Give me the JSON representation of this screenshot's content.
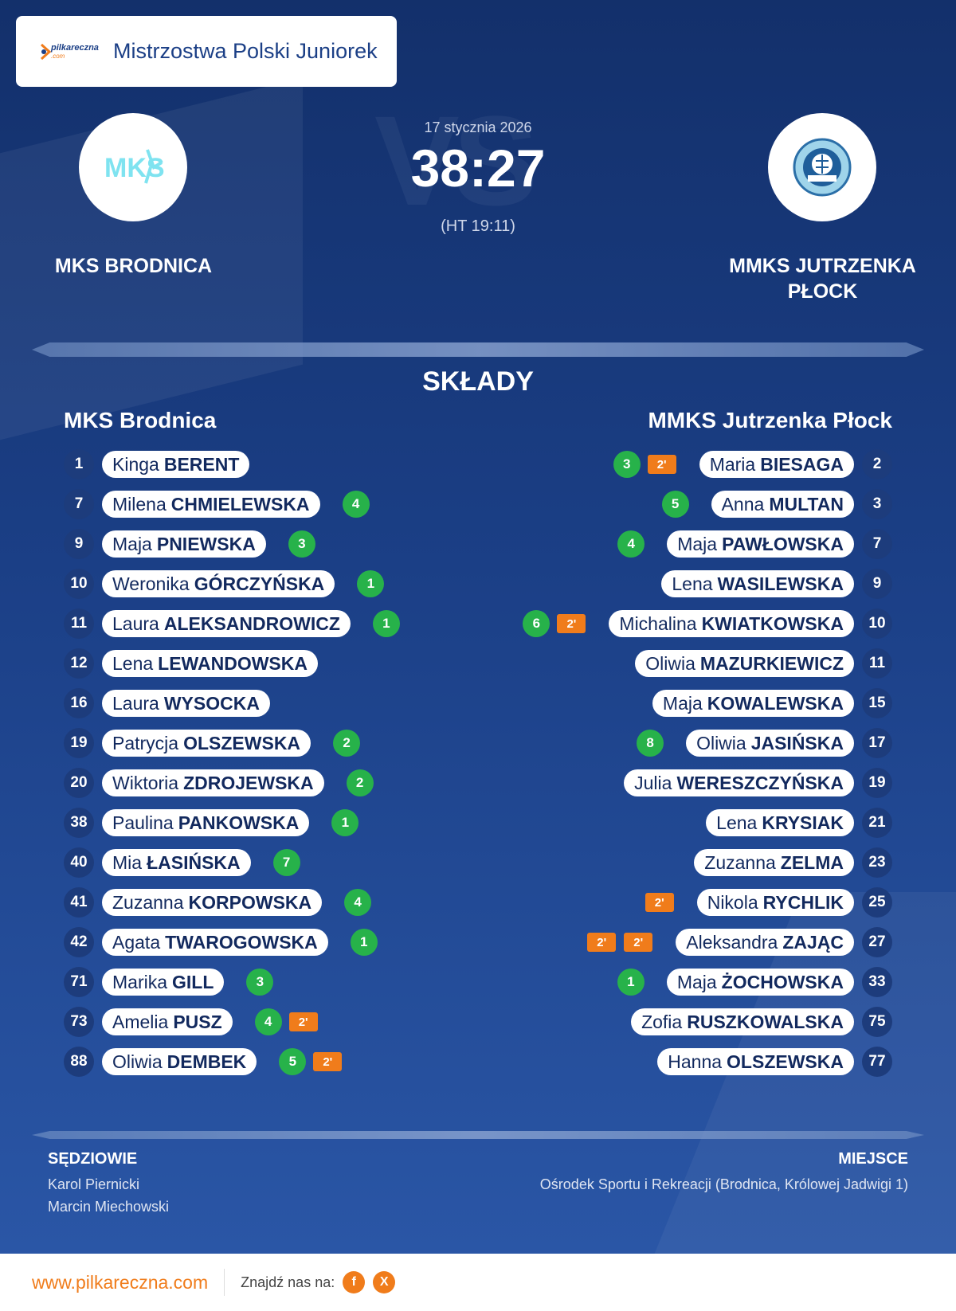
{
  "colors": {
    "accent": "#f07c1b",
    "goal_badge": "#27b24a",
    "navy": "#13306b"
  },
  "header": {
    "brand_logo_text": "pilkareczna",
    "brand_logo_suffix": ".com",
    "competition": "Mistrzostwa Polski Juniorek"
  },
  "match": {
    "date": "17 stycznia 2026",
    "score": "38:27",
    "halftime": "(HT 19:11)",
    "home_team": "MKS BRODNICA",
    "away_team": "MMKS JUTRZENKA PŁOCK"
  },
  "lineups": {
    "title": "SKŁADY",
    "home_name": "MKS Brodnica",
    "away_name": "MMKS Jutrzenka Płock",
    "home": [
      {
        "number": "1",
        "first": "Kinga",
        "last": "BERENT",
        "goals": "",
        "suspensions": []
      },
      {
        "number": "7",
        "first": "Milena",
        "last": "CHMIELEWSKA",
        "goals": "4",
        "suspensions": []
      },
      {
        "number": "9",
        "first": "Maja",
        "last": "PNIEWSKA",
        "goals": "3",
        "suspensions": []
      },
      {
        "number": "10",
        "first": "Weronika",
        "last": "GÓRCZYŃSKA",
        "goals": "1",
        "suspensions": []
      },
      {
        "number": "11",
        "first": "Laura",
        "last": "ALEKSANDROWICZ",
        "goals": "1",
        "suspensions": []
      },
      {
        "number": "12",
        "first": "Lena",
        "last": "LEWANDOWSKA",
        "goals": "",
        "suspensions": []
      },
      {
        "number": "16",
        "first": "Laura",
        "last": "WYSOCKA",
        "goals": "",
        "suspensions": []
      },
      {
        "number": "19",
        "first": "Patrycja",
        "last": "OLSZEWSKA",
        "goals": "2",
        "suspensions": []
      },
      {
        "number": "20",
        "first": "Wiktoria",
        "last": "ZDROJEWSKA",
        "goals": "2",
        "suspensions": []
      },
      {
        "number": "38",
        "first": "Paulina",
        "last": "PANKOWSKA",
        "goals": "1",
        "suspensions": []
      },
      {
        "number": "40",
        "first": "Mia",
        "last": "ŁASIŃSKA",
        "goals": "7",
        "suspensions": []
      },
      {
        "number": "41",
        "first": "Zuzanna",
        "last": "KORPOWSKA",
        "goals": "4",
        "suspensions": []
      },
      {
        "number": "42",
        "first": "Agata",
        "last": "TWAROGOWSKA",
        "goals": "1",
        "suspensions": []
      },
      {
        "number": "71",
        "first": "Marika",
        "last": "GILL",
        "goals": "3",
        "suspensions": []
      },
      {
        "number": "73",
        "first": "Amelia",
        "last": "PUSZ",
        "goals": "4",
        "suspensions": [
          "2'"
        ]
      },
      {
        "number": "88",
        "first": "Oliwia",
        "last": "DEMBEK",
        "goals": "5",
        "suspensions": [
          "2'"
        ]
      }
    ],
    "away": [
      {
        "number": "2",
        "first": "Maria",
        "last": "BIESAGA",
        "goals": "3",
        "suspensions": [
          "2'"
        ]
      },
      {
        "number": "3",
        "first": "Anna",
        "last": "MULTAN",
        "goals": "5",
        "suspensions": []
      },
      {
        "number": "7",
        "first": "Maja",
        "last": "PAWŁOWSKA",
        "goals": "4",
        "suspensions": []
      },
      {
        "number": "9",
        "first": "Lena",
        "last": "WASILEWSKA",
        "goals": "",
        "suspensions": []
      },
      {
        "number": "10",
        "first": "Michalina",
        "last": "KWIATKOWSKA",
        "goals": "6",
        "suspensions": [
          "2'"
        ]
      },
      {
        "number": "11",
        "first": "Oliwia",
        "last": "MAZURKIEWICZ",
        "goals": "",
        "suspensions": []
      },
      {
        "number": "15",
        "first": "Maja",
        "last": "KOWALEWSKA",
        "goals": "",
        "suspensions": []
      },
      {
        "number": "17",
        "first": "Oliwia",
        "last": "JASIŃSKA",
        "goals": "8",
        "suspensions": []
      },
      {
        "number": "19",
        "first": "Julia",
        "last": "WERESZCZYŃSKA",
        "goals": "",
        "suspensions": []
      },
      {
        "number": "21",
        "first": "Lena",
        "last": "KRYSIAK",
        "goals": "",
        "suspensions": []
      },
      {
        "number": "23",
        "first": "Zuzanna",
        "last": "ZELMA",
        "goals": "",
        "suspensions": []
      },
      {
        "number": "25",
        "first": "Nikola",
        "last": "RYCHLIK",
        "goals": "",
        "suspensions": [
          "2'"
        ]
      },
      {
        "number": "27",
        "first": "Aleksandra",
        "last": "ZAJĄC",
        "goals": "",
        "suspensions": [
          "2'",
          "2'"
        ]
      },
      {
        "number": "33",
        "first": "Maja",
        "last": "ŻOCHOWSKA",
        "goals": "1",
        "suspensions": []
      },
      {
        "number": "75",
        "first": "Zofia",
        "last": "RUSZKOWALSKA",
        "goals": "",
        "suspensions": []
      },
      {
        "number": "77",
        "first": "Hanna",
        "last": "OLSZEWSKA",
        "goals": "",
        "suspensions": []
      }
    ]
  },
  "officials": {
    "label": "SĘDZIOWIE",
    "names": [
      "Karol Piernicki",
      "Marcin Miechowski"
    ]
  },
  "venue": {
    "label": "MIEJSCE",
    "text": "Ośrodek Sportu i Rekreacji (Brodnica, Królowej Jadwigi 1)"
  },
  "footer": {
    "url": "www.pilkareczna.com",
    "find_us": "Znajdź nas na:",
    "social": [
      {
        "icon": "facebook-icon",
        "glyph": "f"
      },
      {
        "icon": "x-icon",
        "glyph": "X"
      }
    ]
  }
}
